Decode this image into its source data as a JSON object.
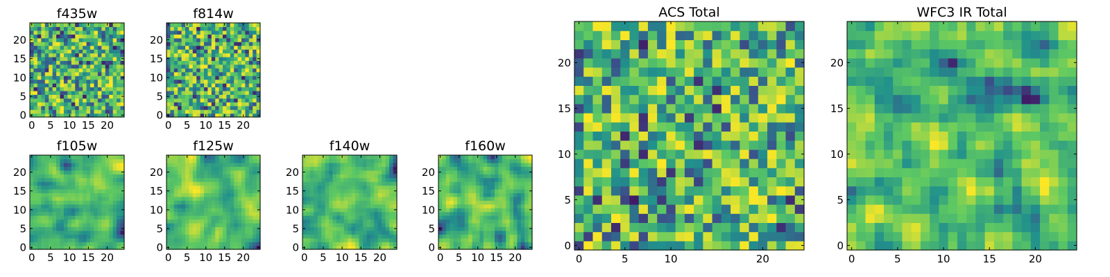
{
  "chart_data": [
    {
      "type": "heatmap",
      "title": "f435w",
      "xticks": [
        "0",
        "5",
        "10",
        "15",
        "20"
      ],
      "yticks": [
        "0",
        "5",
        "10",
        "15",
        "20"
      ],
      "xlim": [
        -0.5,
        24.5
      ],
      "ylim": [
        -0.5,
        24.5
      ],
      "grid_size": 25,
      "seed": 11,
      "smoothing": 0
    },
    {
      "type": "heatmap",
      "title": "f814w",
      "xticks": [
        "0",
        "5",
        "10",
        "15",
        "20"
      ],
      "yticks": [
        "0",
        "5",
        "10",
        "15",
        "20"
      ],
      "xlim": [
        -0.5,
        24.5
      ],
      "ylim": [
        -0.5,
        24.5
      ],
      "grid_size": 25,
      "seed": 23,
      "smoothing": 0
    },
    {
      "type": "heatmap",
      "title": "f105w",
      "xticks": [
        "0",
        "5",
        "10",
        "15",
        "20"
      ],
      "yticks": [
        "0",
        "5",
        "10",
        "15",
        "20"
      ],
      "xlim": [
        -0.5,
        24.5
      ],
      "ylim": [
        -0.5,
        24.5
      ],
      "grid_size": 25,
      "seed": 37,
      "smoothing": 2
    },
    {
      "type": "heatmap",
      "title": "f125w",
      "xticks": [
        "0",
        "5",
        "10",
        "15",
        "20"
      ],
      "yticks": [
        "0",
        "5",
        "10",
        "15",
        "20"
      ],
      "xlim": [
        -0.5,
        24.5
      ],
      "ylim": [
        -0.5,
        24.5
      ],
      "grid_size": 25,
      "seed": 41,
      "smoothing": 2
    },
    {
      "type": "heatmap",
      "title": "f140w",
      "xticks": [
        "0",
        "5",
        "10",
        "15",
        "20"
      ],
      "yticks": [
        "0",
        "5",
        "10",
        "15",
        "20"
      ],
      "xlim": [
        -0.5,
        24.5
      ],
      "ylim": [
        -0.5,
        24.5
      ],
      "grid_size": 25,
      "seed": 53,
      "smoothing": 2
    },
    {
      "type": "heatmap",
      "title": "f160w",
      "xticks": [
        "0",
        "5",
        "10",
        "15",
        "20"
      ],
      "yticks": [
        "0",
        "5",
        "10",
        "15",
        "20"
      ],
      "xlim": [
        -0.5,
        24.5
      ],
      "ylim": [
        -0.5,
        24.5
      ],
      "grid_size": 25,
      "seed": 67,
      "smoothing": 2
    },
    {
      "type": "heatmap",
      "title": "ACS Total",
      "xticks": [
        "0",
        "5",
        "10",
        "20"
      ],
      "yticks": [
        "0",
        "5",
        "10",
        "15",
        "20"
      ],
      "xlim": [
        -0.5,
        24.5
      ],
      "ylim": [
        -0.5,
        24.5
      ],
      "grid_size": 25,
      "seed": 79,
      "smoothing": 0
    },
    {
      "type": "heatmap",
      "title": "WFC3 IR Total",
      "xticks": [
        "0",
        "5",
        "10",
        "15",
        "20"
      ],
      "yticks": [
        "0",
        "5",
        "10",
        "15",
        "20"
      ],
      "xlim": [
        -0.5,
        24.5
      ],
      "ylim": [
        -0.5,
        24.5
      ],
      "grid_size": 25,
      "seed": 97,
      "smoothing": 1
    }
  ],
  "colormap": {
    "name": "viridis",
    "stops": [
      "#440154",
      "#3b528b",
      "#21918c",
      "#5ec962",
      "#fde725"
    ]
  }
}
